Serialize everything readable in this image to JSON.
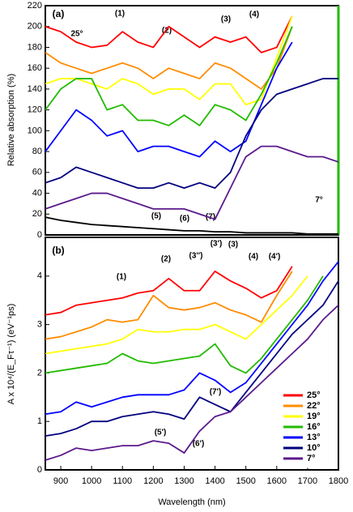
{
  "chart_data": [
    {
      "type": "line",
      "ylabel": "Relative absorption (%)",
      "xlim": [
        850,
        1800
      ],
      "ylim": [
        0,
        220
      ],
      "yticks": [
        0,
        20,
        40,
        60,
        80,
        100,
        120,
        140,
        160,
        180,
        200,
        220
      ],
      "x": [
        850,
        900,
        950,
        1000,
        1050,
        1100,
        1150,
        1200,
        1250,
        1300,
        1350,
        1400,
        1450,
        1500,
        1550,
        1600,
        1650,
        1700,
        1750,
        1800
      ],
      "series": [
        {
          "color": "#ff0000",
          "values": [
            200,
            195,
            185,
            180,
            182,
            195,
            185,
            180,
            200,
            190,
            180,
            190,
            185,
            190,
            175,
            180,
            210,
            null,
            null,
            null
          ]
        },
        {
          "color": "#ff8c00",
          "values": [
            175,
            165,
            160,
            155,
            160,
            165,
            160,
            150,
            160,
            155,
            150,
            165,
            160,
            150,
            140,
            160,
            200,
            null,
            null,
            null
          ]
        },
        {
          "color": "#ffff00",
          "values": [
            145,
            150,
            150,
            145,
            140,
            150,
            145,
            135,
            140,
            140,
            130,
            145,
            145,
            125,
            130,
            170,
            210,
            null,
            null,
            null
          ]
        },
        {
          "color": "#22bb00",
          "values": [
            120,
            140,
            150,
            150,
            120,
            125,
            110,
            110,
            105,
            115,
            105,
            125,
            120,
            110,
            135,
            165,
            200,
            null,
            null,
            null
          ]
        },
        {
          "color": "#0000ff",
          "values": [
            80,
            100,
            120,
            110,
            95,
            100,
            80,
            85,
            85,
            80,
            75,
            90,
            80,
            90,
            125,
            160,
            185,
            null,
            null,
            null
          ]
        },
        {
          "color": "#000080",
          "values": [
            50,
            55,
            65,
            60,
            55,
            50,
            45,
            45,
            50,
            45,
            50,
            45,
            60,
            95,
            120,
            135,
            140,
            145,
            150,
            150
          ]
        },
        {
          "color": "#5b1a8c",
          "values": [
            25,
            30,
            35,
            40,
            40,
            35,
            30,
            25,
            25,
            25,
            20,
            15,
            45,
            75,
            85,
            85,
            80,
            75,
            75,
            70
          ]
        },
        {
          "color": "#000000",
          "values": [
            17,
            14,
            12,
            10,
            9,
            8,
            7,
            6,
            5,
            4,
            4,
            3,
            3,
            2,
            2,
            2,
            2,
            1,
            1,
            1
          ]
        }
      ],
      "annotations": [
        "(a)",
        "25°",
        "(1)",
        "(2)",
        "(3)",
        "(4)",
        "(5)",
        "(6)",
        "(7)",
        "7°"
      ]
    },
    {
      "type": "line",
      "xlabel": "Wavelength (nm)",
      "ylabel": "A x 10⁴/(E_Fτ⁻¹) (eV⁻¹ps)",
      "xlim": [
        850,
        1800
      ],
      "ylim": [
        0,
        4.8
      ],
      "xticks": [
        900,
        1000,
        1100,
        1200,
        1300,
        1400,
        1500,
        1600,
        1700,
        1800
      ],
      "yticks": [
        0,
        1,
        2,
        3,
        4
      ],
      "legend": "lower right",
      "x": [
        850,
        900,
        950,
        1000,
        1050,
        1100,
        1150,
        1200,
        1250,
        1300,
        1350,
        1400,
        1450,
        1500,
        1550,
        1600,
        1650,
        1700,
        1750,
        1800
      ],
      "series": [
        {
          "name": "25°",
          "color": "#ff0000",
          "values": [
            3.2,
            3.25,
            3.4,
            3.45,
            3.5,
            3.55,
            3.65,
            3.7,
            3.95,
            3.7,
            3.7,
            4.1,
            3.9,
            3.75,
            3.55,
            3.7,
            4.2,
            null,
            null,
            null
          ]
        },
        {
          "name": "22°",
          "color": "#ff8c00",
          "values": [
            2.7,
            2.75,
            2.85,
            2.95,
            3.1,
            3.05,
            3.1,
            3.6,
            3.35,
            3.3,
            3.35,
            3.45,
            3.3,
            3.2,
            3.05,
            3.6,
            4.1,
            null,
            null,
            null
          ]
        },
        {
          "name": "19°",
          "color": "#ffff00",
          "values": [
            2.4,
            2.45,
            2.5,
            2.55,
            2.6,
            2.7,
            2.9,
            2.85,
            2.85,
            2.9,
            2.9,
            3.0,
            2.85,
            2.7,
            3.0,
            3.3,
            3.6,
            4.0,
            null,
            null
          ]
        },
        {
          "name": "16°",
          "color": "#22bb00",
          "values": [
            2.0,
            2.05,
            2.1,
            2.15,
            2.2,
            2.4,
            2.25,
            2.2,
            2.25,
            2.3,
            2.35,
            2.6,
            2.15,
            2.0,
            2.3,
            2.7,
            3.1,
            3.5,
            4.0,
            null
          ]
        },
        {
          "name": "13°",
          "color": "#0000ff",
          "values": [
            1.15,
            1.2,
            1.4,
            1.3,
            1.4,
            1.5,
            1.55,
            1.55,
            1.55,
            1.65,
            2.0,
            1.85,
            1.6,
            1.8,
            2.2,
            2.6,
            3.0,
            3.4,
            3.9,
            4.3
          ]
        },
        {
          "name": "10°",
          "color": "#000080",
          "values": [
            0.7,
            0.75,
            0.85,
            1.0,
            1.0,
            1.1,
            1.15,
            1.2,
            1.15,
            1.05,
            1.5,
            1.35,
            1.2,
            1.6,
            2.0,
            2.4,
            2.8,
            3.1,
            3.4,
            3.9
          ]
        },
        {
          "name": "7°",
          "color": "#5b1a8c",
          "values": [
            0.2,
            0.3,
            0.45,
            0.4,
            0.45,
            0.5,
            0.5,
            0.6,
            0.55,
            0.35,
            0.8,
            1.1,
            1.2,
            1.5,
            1.8,
            2.1,
            2.4,
            2.7,
            3.1,
            3.4
          ]
        }
      ],
      "annotations": [
        "(b)",
        "(1)",
        "(2)",
        "(3'')",
        "(3')",
        "(3)",
        "(4)",
        "(4')",
        "(5')",
        "(6')",
        "(7')"
      ]
    }
  ]
}
